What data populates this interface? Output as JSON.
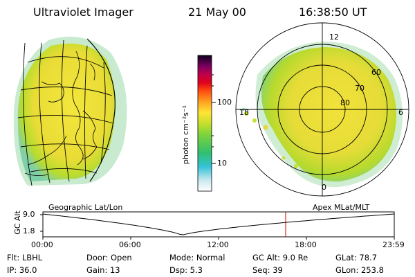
{
  "header": {
    "title": "Ultraviolet Imager",
    "date": "21 May 00",
    "time": "16:38:50 UT"
  },
  "colorbar": {
    "unit_label": "photon cm⁻²s⁻¹",
    "ticks": [
      "100",
      "10"
    ]
  },
  "left_panel": {
    "caption": "Geographic Lat/Lon"
  },
  "right_panel": {
    "caption": "Apex MLat/MLT",
    "mlt_labels": {
      "top": "12",
      "left": "18",
      "right": "6",
      "bottom": "0"
    },
    "lat_labels": [
      "60",
      "70",
      "80"
    ]
  },
  "altitude_plot": {
    "ylabel": "GC Alt",
    "yticks": [
      "9.0",
      "1.8"
    ],
    "xticks": [
      "00:00",
      "06:00",
      "12:00",
      "18:00",
      "23:59"
    ]
  },
  "info": {
    "filter": "Flt: LBHL",
    "ip": "IP: 36.0",
    "door": "Door: Open",
    "gain": "Gain: 13",
    "mode": "Mode: Normal",
    "dsp": "Dsp:    5.3",
    "gc_alt": "GC Alt: 9.0 Re",
    "seq": "Seq: 39",
    "glat": "GLat:  78.7",
    "glon": "GLon: 253.8"
  },
  "colors": {
    "image_yellow": "#f2e23a",
    "image_green": "#a6d92c",
    "marker_red": "#cc0000"
  }
}
